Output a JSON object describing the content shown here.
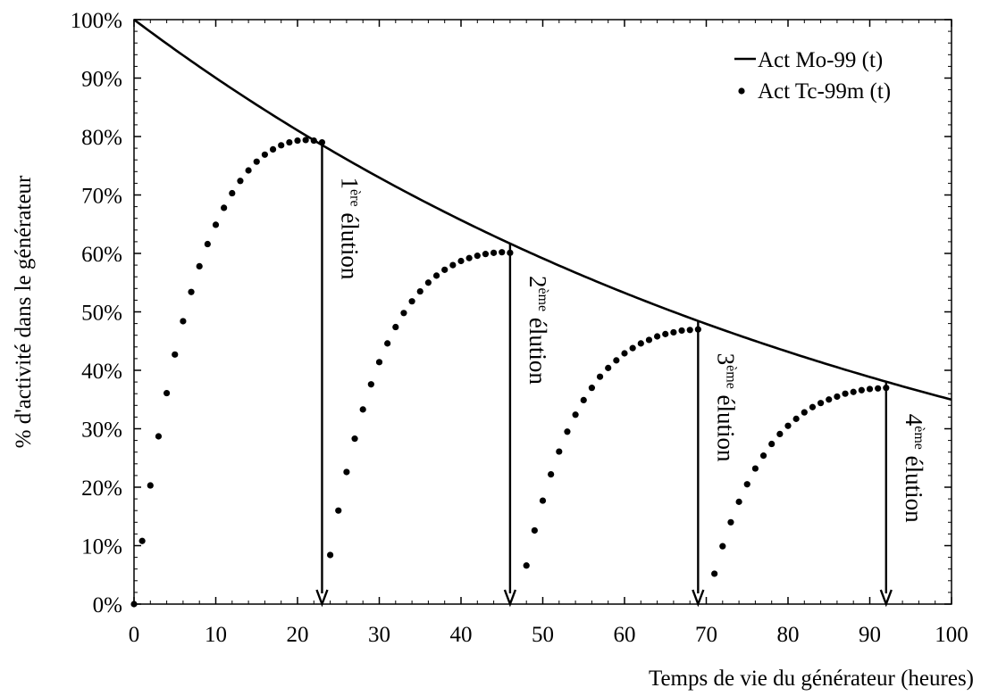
{
  "chart_data": {
    "type": "scatter",
    "xlabel": "Temps de vie du générateur (heures)",
    "ylabel": "% d'activité dans le générateur",
    "xlim": [
      0,
      100
    ],
    "ylim": [
      0,
      100
    ],
    "x_ticks": [
      "0",
      "10",
      "20",
      "30",
      "40",
      "50",
      "60",
      "70",
      "80",
      "90",
      "100"
    ],
    "y_ticks": [
      "0%",
      "10%",
      "20%",
      "30%",
      "40%",
      "50%",
      "60%",
      "70%",
      "80%",
      "90%",
      "100%"
    ],
    "legend_position": "top-right",
    "grid": false,
    "series": [
      {
        "name": "Act Mo-99 (t)",
        "style": "line",
        "half_life_hours": 66,
        "x": [
          0,
          10,
          20,
          23,
          30,
          40,
          46,
          50,
          60,
          69,
          70,
          80,
          90,
          92,
          100
        ],
        "y": [
          100,
          90.0,
          81.0,
          78.6,
          73.0,
          65.7,
          61.7,
          59.2,
          53.3,
          48.5,
          48.0,
          43.2,
          38.9,
          38.1,
          35.0
        ]
      },
      {
        "name": "Act Tc-99m (t)",
        "style": "dots",
        "half_life_hours": 6,
        "elution_times": [
          23,
          46,
          69,
          92
        ],
        "x": [
          0,
          1,
          2,
          3,
          4,
          5,
          6,
          7,
          8,
          9,
          10,
          11,
          12,
          13,
          14,
          15,
          16,
          17,
          18,
          19,
          20,
          21,
          22,
          23,
          24,
          25,
          26,
          27,
          28,
          29,
          30,
          31,
          32,
          33,
          34,
          35,
          36,
          37,
          38,
          39,
          40,
          41,
          42,
          43,
          44,
          45,
          46,
          48,
          49,
          50,
          51,
          52,
          53,
          54,
          55,
          56,
          57,
          58,
          59,
          60,
          61,
          62,
          63,
          64,
          65,
          66,
          67,
          68,
          69,
          71,
          72,
          73,
          74,
          75,
          76,
          77,
          78,
          79,
          80,
          81,
          82,
          83,
          84,
          85,
          86,
          87,
          88,
          89,
          90,
          91,
          92
        ],
        "y": [
          0,
          10.8,
          20.3,
          28.7,
          36.1,
          42.7,
          48.4,
          53.4,
          57.8,
          61.6,
          64.9,
          67.8,
          70.3,
          72.4,
          74.2,
          75.7,
          76.9,
          77.8,
          78.5,
          79.0,
          79.3,
          79.4,
          79.3,
          79.0,
          8.4,
          16.0,
          22.6,
          28.3,
          33.3,
          37.6,
          41.4,
          44.6,
          47.4,
          49.8,
          51.8,
          53.5,
          55.0,
          56.2,
          57.2,
          58.0,
          58.7,
          59.2,
          59.6,
          59.9,
          60.1,
          60.2,
          60.1,
          6.6,
          12.6,
          17.7,
          22.2,
          26.1,
          29.5,
          32.4,
          34.9,
          37.0,
          38.9,
          40.4,
          41.7,
          42.9,
          43.8,
          44.6,
          45.2,
          45.8,
          46.2,
          46.5,
          46.8,
          46.9,
          47.0,
          5.2,
          9.9,
          14.0,
          17.5,
          20.5,
          23.2,
          25.4,
          27.4,
          29.1,
          30.5,
          31.7,
          32.8,
          33.7,
          34.4,
          35.0,
          35.5,
          36.0,
          36.3,
          36.6,
          36.8,
          36.9,
          37.0
        ]
      }
    ],
    "annotations": [
      {
        "sup_num": "1",
        "sup": "ère",
        "text": "élution",
        "x": 23
      },
      {
        "sup_num": "2",
        "sup": "ème",
        "text": "élution",
        "x": 46
      },
      {
        "sup_num": "3",
        "sup": "ème",
        "text": "élution",
        "x": 69
      },
      {
        "sup_num": "4",
        "sup": "ème",
        "text": "élution",
        "x": 92
      }
    ]
  }
}
